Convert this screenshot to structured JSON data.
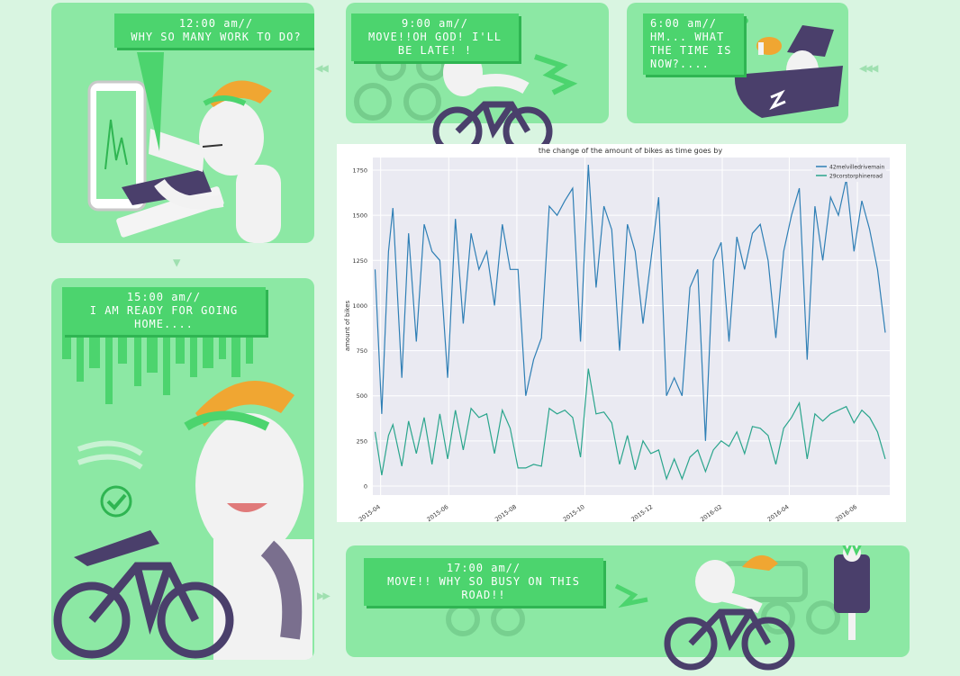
{
  "colors": {
    "background": "#d9f5e1",
    "panel": "#8ce8a4",
    "bubble": "#4cd46e",
    "cap": "#f0a632",
    "bike": "#4a3f6b",
    "series1": "#2f7fb5",
    "series2": "#2aa58c"
  },
  "panels": {
    "noon": {
      "time": "12:00 am//",
      "text": "WHY SO MANY WORK TO DO?"
    },
    "nine": {
      "time": "9:00 am//",
      "text": "MOVE!!OH GOD! I'LL BE LATE! !"
    },
    "six": {
      "time": "6:00 am//",
      "line1": "HM... WHAT",
      "line2": "THE TIME IS",
      "line3": "NOW?...."
    },
    "fifteen": {
      "time": "15:00 am//",
      "text": "I AM READY FOR GOING HOME...."
    },
    "seventeen": {
      "time": "17:00 am//",
      "text": "MOVE!! WHY SO BUSY ON THIS ROAD!!"
    }
  },
  "icons": [
    "monitor-icon",
    "bicycle-icon",
    "checkmark-icon",
    "meat-icon",
    "nightcap-icon",
    "pillow-icon"
  ],
  "chart_data": {
    "type": "line",
    "title": "the change of the amount of bikes as time goes by",
    "xlabel": "",
    "ylabel": "amount of bikes",
    "xlim": [
      "2015-03-25",
      "2016-06-30"
    ],
    "ylim": [
      -50,
      1820
    ],
    "yticks": [
      0,
      250,
      500,
      750,
      1000,
      1250,
      1500,
      1750
    ],
    "xticks": [
      "2015-04",
      "2015-06",
      "2015-08",
      "2015-10",
      "2015-12",
      "2016-02",
      "2016-04",
      "2016-06"
    ],
    "xtick_dates": [
      "2015-04-01",
      "2015-06-01",
      "2015-08-01",
      "2015-10-01",
      "2015-12-01",
      "2016-02-01",
      "2016-04-01",
      "2016-06-01"
    ],
    "grid": true,
    "legend": "top-right",
    "series": [
      {
        "name": "42melvilledrivemain",
        "x": [
          "2015-03-27",
          "2015-04-02",
          "2015-04-08",
          "2015-04-12",
          "2015-04-20",
          "2015-04-26",
          "2015-05-03",
          "2015-05-10",
          "2015-05-17",
          "2015-05-24",
          "2015-05-31",
          "2015-06-07",
          "2015-06-14",
          "2015-06-21",
          "2015-06-28",
          "2015-07-05",
          "2015-07-12",
          "2015-07-19",
          "2015-07-26",
          "2015-08-02",
          "2015-08-09",
          "2015-08-16",
          "2015-08-23",
          "2015-08-30",
          "2015-09-06",
          "2015-09-13",
          "2015-09-20",
          "2015-09-27",
          "2015-10-04",
          "2015-10-11",
          "2015-10-18",
          "2015-10-25",
          "2015-11-01",
          "2015-11-08",
          "2015-11-15",
          "2015-11-22",
          "2015-11-29",
          "2015-12-06",
          "2015-12-13",
          "2015-12-20",
          "2015-12-27",
          "2016-01-03",
          "2016-01-10",
          "2016-01-17",
          "2016-01-24",
          "2016-01-31",
          "2016-02-07",
          "2016-02-14",
          "2016-02-21",
          "2016-02-28",
          "2016-03-06",
          "2016-03-13",
          "2016-03-20",
          "2016-03-27",
          "2016-04-03",
          "2016-04-10",
          "2016-04-17",
          "2016-04-24",
          "2016-05-01",
          "2016-05-08",
          "2016-05-15",
          "2016-05-22",
          "2016-05-29",
          "2016-06-05",
          "2016-06-12",
          "2016-06-19",
          "2016-06-26"
        ],
        "values": [
          1200,
          400,
          1300,
          1540,
          600,
          1400,
          800,
          1450,
          1300,
          1250,
          600,
          1480,
          900,
          1400,
          1200,
          1300,
          1000,
          1450,
          1200,
          1200,
          500,
          700,
          820,
          1550,
          1500,
          1580,
          1650,
          800,
          1780,
          1100,
          1550,
          1420,
          750,
          1450,
          1300,
          900,
          1250,
          1600,
          500,
          600,
          500,
          1100,
          1200,
          250,
          1250,
          1350,
          800,
          1380,
          1200,
          1400,
          1450,
          1250,
          820,
          1300,
          1500,
          1650,
          700,
          1550,
          1250,
          1600,
          1500,
          1700,
          1300,
          1580,
          1420,
          1200,
          850
        ]
      },
      {
        "name": "29corstorphineroad",
        "x": [
          "2015-03-27",
          "2015-04-02",
          "2015-04-08",
          "2015-04-12",
          "2015-04-20",
          "2015-04-26",
          "2015-05-03",
          "2015-05-10",
          "2015-05-17",
          "2015-05-24",
          "2015-05-31",
          "2015-06-07",
          "2015-06-14",
          "2015-06-21",
          "2015-06-28",
          "2015-07-05",
          "2015-07-12",
          "2015-07-19",
          "2015-07-26",
          "2015-08-02",
          "2015-08-09",
          "2015-08-16",
          "2015-08-23",
          "2015-08-30",
          "2015-09-06",
          "2015-09-13",
          "2015-09-20",
          "2015-09-27",
          "2015-10-04",
          "2015-10-11",
          "2015-10-18",
          "2015-10-25",
          "2015-11-01",
          "2015-11-08",
          "2015-11-15",
          "2015-11-22",
          "2015-11-29",
          "2015-12-06",
          "2015-12-13",
          "2015-12-20",
          "2015-12-27",
          "2016-01-03",
          "2016-01-10",
          "2016-01-17",
          "2016-01-24",
          "2016-01-31",
          "2016-02-07",
          "2016-02-14",
          "2016-02-21",
          "2016-02-28",
          "2016-03-06",
          "2016-03-13",
          "2016-03-20",
          "2016-03-27",
          "2016-04-03",
          "2016-04-10",
          "2016-04-17",
          "2016-04-24",
          "2016-05-01",
          "2016-05-08",
          "2016-05-15",
          "2016-05-22",
          "2016-05-29",
          "2016-06-05",
          "2016-06-12",
          "2016-06-19",
          "2016-06-26"
        ],
        "values": [
          300,
          60,
          280,
          340,
          110,
          360,
          180,
          380,
          120,
          400,
          150,
          420,
          200,
          430,
          380,
          400,
          180,
          420,
          320,
          100,
          100,
          120,
          110,
          430,
          400,
          420,
          380,
          160,
          650,
          400,
          410,
          350,
          120,
          280,
          90,
          250,
          180,
          200,
          40,
          150,
          40,
          160,
          200,
          80,
          200,
          250,
          220,
          300,
          180,
          330,
          320,
          280,
          120,
          320,
          380,
          460,
          150,
          400,
          360,
          400,
          420,
          440,
          350,
          420,
          380,
          300,
          150
        ]
      }
    ]
  }
}
